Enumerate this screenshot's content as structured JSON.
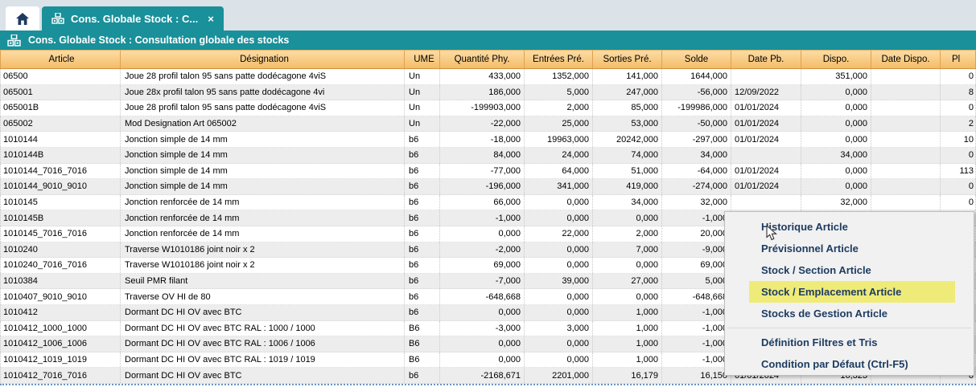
{
  "tabs": {
    "active_label": "Cons. Globale Stock : C...",
    "close_glyph": "×"
  },
  "banner": {
    "title": "Cons. Globale Stock : Consultation globale des stocks"
  },
  "table": {
    "columns": [
      "Article",
      "Désignation",
      "UME",
      "Quantité Phy.",
      "Entrées Pré.",
      "Sorties Pré.",
      "Solde",
      "Date Pb.",
      "Dispo.",
      "Date Dispo.",
      "Pl"
    ],
    "rows": [
      [
        "06500",
        "Joue 28 profil talon 95 sans patte dodécagone 4viS",
        "Un",
        "433,000",
        "1352,000",
        "141,000",
        "1644,000",
        "",
        "351,000",
        "",
        "0"
      ],
      [
        "065001",
        "Joue 28x profil talon 95 sans patte dodécagone 4vi",
        "Un",
        "186,000",
        "5,000",
        "247,000",
        "-56,000",
        "12/09/2022",
        "0,000",
        "",
        "8"
      ],
      [
        "065001B",
        "Joue 28 profil talon 95 sans patte dodécagone 4viS",
        "Un",
        "-199903,000",
        "2,000",
        "85,000",
        "-199986,000",
        "01/01/2024",
        "0,000",
        "",
        "0"
      ],
      [
        "065002",
        "Mod Designation Art 065002",
        "Un",
        "-22,000",
        "25,000",
        "53,000",
        "-50,000",
        "01/01/2024",
        "0,000",
        "",
        "2"
      ],
      [
        "1010144",
        "Jonction simple de 14 mm",
        "b6",
        "-18,000",
        "19963,000",
        "20242,000",
        "-297,000",
        "01/01/2024",
        "0,000",
        "",
        "10"
      ],
      [
        "1010144B",
        "Jonction simple de 14 mm",
        "b6",
        "84,000",
        "24,000",
        "74,000",
        "34,000",
        "",
        "34,000",
        "",
        "0"
      ],
      [
        "1010144_7016_7016",
        "Jonction simple de 14 mm",
        "b6",
        "-77,000",
        "64,000",
        "51,000",
        "-64,000",
        "01/01/2024",
        "0,000",
        "",
        "113"
      ],
      [
        "1010144_9010_9010",
        "Jonction simple de 14 mm",
        "b6",
        "-196,000",
        "341,000",
        "419,000",
        "-274,000",
        "01/01/2024",
        "0,000",
        "",
        "0"
      ],
      [
        "1010145",
        "Jonction renforcée de 14 mm",
        "b6",
        "66,000",
        "0,000",
        "34,000",
        "32,000",
        "",
        "32,000",
        "",
        "0"
      ],
      [
        "1010145B",
        "Jonction renforcée de 14 mm",
        "b6",
        "-1,000",
        "0,000",
        "0,000",
        "-1,000",
        "",
        "",
        "",
        ""
      ],
      [
        "1010145_7016_7016",
        "Jonction renforcée de 14 mm",
        "b6",
        "0,000",
        "22,000",
        "2,000",
        "20,000",
        "",
        "",
        "",
        ""
      ],
      [
        "1010240",
        "Traverse W1010186 joint noir x 2",
        "b6",
        "-2,000",
        "0,000",
        "7,000",
        "-9,000",
        "",
        "",
        "",
        ""
      ],
      [
        "1010240_7016_7016",
        "Traverse W1010186 joint noir x 2",
        "b6",
        "69,000",
        "0,000",
        "0,000",
        "69,000",
        "",
        "",
        "",
        ""
      ],
      [
        "1010384",
        "Seuil PMR filant",
        "b6",
        "-7,000",
        "39,000",
        "27,000",
        "5,000",
        "",
        "",
        "",
        ""
      ],
      [
        "1010407_9010_9010",
        "Traverse OV HI de 80",
        "b6",
        "-648,668",
        "0,000",
        "0,000",
        "-648,668",
        "",
        "",
        "",
        ""
      ],
      [
        "1010412",
        "Dormant DC HI OV avec BTC",
        "b6",
        "0,000",
        "0,000",
        "1,000",
        "-1,000",
        "",
        "",
        "",
        ""
      ],
      [
        "1010412_1000_1000",
        "Dormant DC HI OV avec BTC RAL : 1000 / 1000",
        "B6",
        "-3,000",
        "3,000",
        "1,000",
        "-1,000",
        "",
        "",
        "",
        ""
      ],
      [
        "1010412_1006_1006",
        "Dormant DC HI OV avec BTC RAL : 1006 / 1006",
        "B6",
        "0,000",
        "0,000",
        "1,000",
        "-1,000",
        "",
        "",
        "",
        ""
      ],
      [
        "1010412_1019_1019",
        "Dormant DC HI OV avec BTC RAL : 1019 / 1019",
        "B6",
        "0,000",
        "0,000",
        "1,000",
        "-1,000",
        "",
        "",
        "",
        ""
      ],
      [
        "1010412_7016_7016",
        "Dormant DC HI OV avec BTC",
        "b6",
        "-2168,671",
        "2201,000",
        "16,179",
        "16,150",
        "01/01/2024",
        "16,323",
        "",
        "0"
      ]
    ]
  },
  "context_menu": {
    "items": [
      {
        "label": "Historique Article",
        "highlighted": false
      },
      {
        "label": "Prévisionnel Article",
        "highlighted": false
      },
      {
        "label": "Stock / Section Article",
        "highlighted": false
      },
      {
        "label": "Stock / Emplacement Article",
        "highlighted": true
      },
      {
        "label": "Stocks de Gestion Article",
        "highlighted": false
      },
      {
        "label": "Définition Filtres et Tris",
        "highlighted": false
      },
      {
        "label": "Condition par Défaut (Ctrl-F5)",
        "highlighted": false
      }
    ],
    "separator_after_index": 4
  },
  "colors": {
    "teal": "#19909a",
    "header_orange": "#f4bd68",
    "highlight_yellow": "#efeb79",
    "menu_text": "#1d3c62",
    "stripe_gray": "#ededed"
  }
}
